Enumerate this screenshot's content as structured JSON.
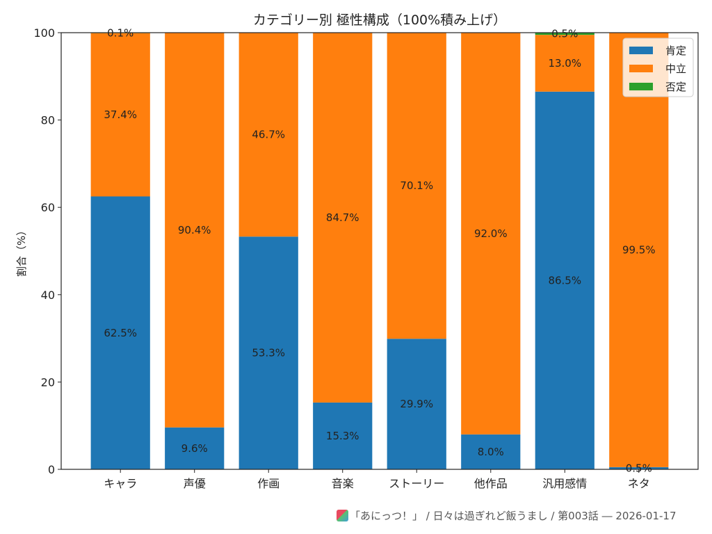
{
  "chart_data": {
    "type": "bar",
    "stacked": true,
    "title": "カテゴリー別 極性構成（100%積み上げ）",
    "xlabel": "",
    "ylabel": "割合（%）",
    "ylim": [
      0,
      100
    ],
    "yticks": [
      0,
      20,
      40,
      60,
      80,
      100
    ],
    "grid": false,
    "legend_position": "top-right",
    "categories": [
      "キャラ",
      "声優",
      "作画",
      "音楽",
      "ストーリー",
      "他作品",
      "汎用感情",
      "ネタ"
    ],
    "series": [
      {
        "name": "肯定",
        "color": "#1f77b4",
        "values": [
          62.5,
          9.6,
          53.3,
          15.3,
          29.9,
          8.0,
          86.5,
          0.5
        ]
      },
      {
        "name": "中立",
        "color": "#ff7f0e",
        "values": [
          37.4,
          90.4,
          46.7,
          84.7,
          70.1,
          92.0,
          13.0,
          99.5
        ]
      },
      {
        "name": "否定",
        "color": "#2ca02c",
        "values": [
          0.1,
          0.0,
          0.0,
          0.0,
          0.0,
          0.0,
          0.5,
          0.0
        ]
      }
    ],
    "data_labels": "percent values shown inside segments (omitted for 0.0)"
  },
  "footer": {
    "icon": "app-logo-icon",
    "text": "「あにっつ！」 / 日々は過ぎれど飯うまし / 第003話 ― 2026-01-17"
  }
}
